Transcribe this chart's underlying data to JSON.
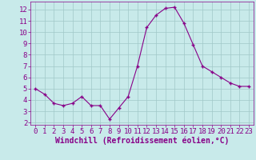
{
  "x": [
    0,
    1,
    2,
    3,
    4,
    5,
    6,
    7,
    8,
    9,
    10,
    11,
    12,
    13,
    14,
    15,
    16,
    17,
    18,
    19,
    20,
    21,
    22,
    23
  ],
  "y": [
    5.0,
    4.5,
    3.7,
    3.5,
    3.7,
    4.3,
    3.5,
    3.5,
    2.3,
    3.3,
    4.3,
    7.0,
    10.4,
    11.5,
    12.1,
    12.2,
    10.8,
    8.9,
    7.0,
    6.5,
    6.0,
    5.5,
    5.2,
    5.2
  ],
  "line_color": "#880088",
  "marker": "+",
  "marker_color": "#880088",
  "bg_color": "#c8eaea",
  "grid_color": "#a0c8c8",
  "xlabel": "Windchill (Refroidissement éolien,°C)",
  "tick_color": "#880088",
  "xlim": [
    -0.5,
    23.5
  ],
  "ylim": [
    1.8,
    12.7
  ],
  "yticks": [
    2,
    3,
    4,
    5,
    6,
    7,
    8,
    9,
    10,
    11,
    12
  ],
  "xticks": [
    0,
    1,
    2,
    3,
    4,
    5,
    6,
    7,
    8,
    9,
    10,
    11,
    12,
    13,
    14,
    15,
    16,
    17,
    18,
    19,
    20,
    21,
    22,
    23
  ],
  "figsize": [
    3.2,
    2.0
  ],
  "dpi": 100,
  "font_size": 6.5,
  "xlabel_fontsize": 7
}
